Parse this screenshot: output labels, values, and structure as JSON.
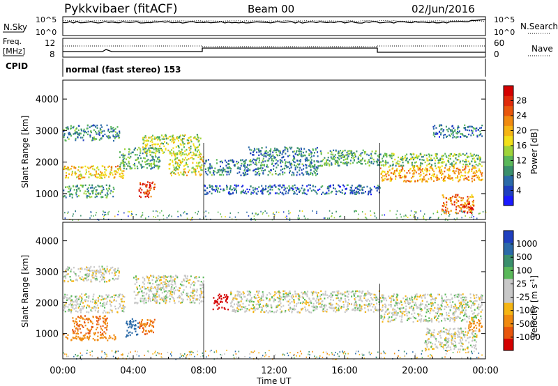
{
  "header": {
    "radar": "Pykkvibaer (fitACF)",
    "beam": "Beam 00",
    "date": "02/Jun/2016"
  },
  "nsky": {
    "label": "N.Sky",
    "right_label": "N.Search",
    "ticks_left": [
      "10^5",
      "10^0"
    ],
    "ticks_right": [
      "10^5",
      "10^0"
    ]
  },
  "freq": {
    "label_top": "Freq.",
    "label_bottom": "[MHz]",
    "right_label": "Nave",
    "ticks_left": [
      "12",
      "8"
    ],
    "ticks_right": [
      "60",
      "0"
    ]
  },
  "cpid": {
    "label": "CPID",
    "text": "normal (fast stereo) 153"
  },
  "x_axis": {
    "label": "Time UT",
    "ticks": [
      "00:00",
      "04:00",
      "08:00",
      "12:00",
      "16:00",
      "20:00",
      "00:00"
    ]
  },
  "power": {
    "title": "Power [dB]",
    "colorbar_labels": [
      "28",
      "24",
      "20",
      "16",
      "12",
      "8",
      "4"
    ],
    "colors": [
      "#1a1aff",
      "#1f3fbf",
      "#2b6aa8",
      "#3a8f6c",
      "#5ab85a",
      "#9fd43a",
      "#f2e01a",
      "#f5b514",
      "#f08a10",
      "#e8560d",
      "#e02a0a",
      "#d40000"
    ]
  },
  "velocity": {
    "title": "Velocity",
    "units": "[m s",
    "units_sup": "-1",
    "units_end": "]",
    "colorbar_labels": [
      "1000",
      "500",
      "100",
      "25",
      "-25",
      "-100",
      "-500",
      "-1000"
    ],
    "colors": [
      "#1f3fbf",
      "#2b6aa8",
      "#3a8f6c",
      "#5ab85a",
      "#c8c8c8",
      "#c8c8c8",
      "#f5b514",
      "#f08a10",
      "#e8560d",
      "#d40000"
    ]
  },
  "chart_data": [
    {
      "type": "heatmap",
      "title": "Power [dB]",
      "xlabel": "Time UT",
      "ylabel": "Slant Range [km]",
      "xlim": [
        0,
        24
      ],
      "ylim": [
        180,
        4600
      ],
      "x_ticks": [
        "00:00",
        "04:00",
        "08:00",
        "12:00",
        "16:00",
        "20:00",
        "00:00"
      ],
      "y_ticks": [
        1000,
        2000,
        3000,
        4000
      ],
      "colorbar_range": [
        0,
        30
      ],
      "regions": [
        {
          "t0": 0.0,
          "t1": 3.2,
          "r0": 2700,
          "r1": 3200,
          "level": 8
        },
        {
          "t0": 0.0,
          "t1": 3.5,
          "r0": 1500,
          "r1": 1900,
          "level": 18
        },
        {
          "t0": 0.0,
          "t1": 3.0,
          "r0": 900,
          "r1": 1300,
          "level": 10
        },
        {
          "t0": 3.2,
          "t1": 5.5,
          "r0": 1800,
          "r1": 2500,
          "level": 10
        },
        {
          "t0": 4.3,
          "t1": 5.2,
          "r0": 900,
          "r1": 1400,
          "level": 26
        },
        {
          "t0": 4.5,
          "t1": 7.8,
          "r0": 2300,
          "r1": 2900,
          "level": 14
        },
        {
          "t0": 6.0,
          "t1": 8.0,
          "r0": 1600,
          "r1": 2300,
          "level": 16
        },
        {
          "t0": 8.0,
          "t1": 14.5,
          "r0": 1600,
          "r1": 2100,
          "level": 8
        },
        {
          "t0": 10.5,
          "t1": 14.5,
          "r0": 2100,
          "r1": 2500,
          "level": 8
        },
        {
          "t0": 14.5,
          "t1": 18.0,
          "r0": 1900,
          "r1": 2400,
          "level": 10
        },
        {
          "t0": 8.0,
          "t1": 18.0,
          "r0": 1000,
          "r1": 1300,
          "level": 6
        },
        {
          "t0": 18.0,
          "t1": 23.8,
          "r0": 1400,
          "r1": 1900,
          "level": 20
        },
        {
          "t0": 18.0,
          "t1": 23.8,
          "r0": 1900,
          "r1": 2300,
          "level": 12
        },
        {
          "t0": 21.0,
          "t1": 23.8,
          "r0": 2800,
          "r1": 3200,
          "level": 7
        },
        {
          "t0": 21.5,
          "t1": 23.3,
          "r0": 400,
          "r1": 1000,
          "level": 22
        },
        {
          "t0": 22.7,
          "t1": 23.3,
          "r0": 400,
          "r1": 700,
          "level": 28
        }
      ]
    },
    {
      "type": "heatmap",
      "title": "Velocity [m s-1]",
      "xlabel": "Time UT",
      "ylabel": "Slant Range [km]",
      "xlim": [
        0,
        24
      ],
      "ylim": [
        180,
        4600
      ],
      "x_ticks": [
        "00:00",
        "04:00",
        "08:00",
        "12:00",
        "16:00",
        "20:00",
        "00:00"
      ],
      "y_ticks": [
        1000,
        2000,
        3000,
        4000
      ],
      "colorbar_range": [
        -1000,
        1000
      ],
      "regions": [
        {
          "t0": 0.0,
          "t1": 3.2,
          "r0": 2700,
          "r1": 3200,
          "velocity": 0
        },
        {
          "t0": 0.0,
          "t1": 3.5,
          "r0": 1700,
          "r1": 2300,
          "velocity": 0
        },
        {
          "t0": 0.5,
          "t1": 2.5,
          "r0": 1000,
          "r1": 1600,
          "velocity": -500
        },
        {
          "t0": 0.0,
          "t1": 3.0,
          "r0": 800,
          "r1": 1000,
          "velocity": -250
        },
        {
          "t0": 3.5,
          "t1": 4.3,
          "r0": 900,
          "r1": 1500,
          "velocity": 200
        },
        {
          "t0": 4.3,
          "t1": 5.2,
          "r0": 900,
          "r1": 1500,
          "velocity": -500
        },
        {
          "t0": 4.0,
          "t1": 8.0,
          "r0": 2000,
          "r1": 2900,
          "velocity": 0
        },
        {
          "t0": 8.5,
          "t1": 9.4,
          "r0": 1800,
          "r1": 2300,
          "velocity": -1000
        },
        {
          "t0": 9.5,
          "t1": 18.0,
          "r0": 1700,
          "r1": 2400,
          "velocity": 0
        },
        {
          "t0": 18.0,
          "t1": 23.8,
          "r0": 1400,
          "r1": 2300,
          "velocity": 0
        },
        {
          "t0": 20.5,
          "t1": 23.5,
          "r0": 500,
          "r1": 1200,
          "velocity": 0
        },
        {
          "t0": 23.0,
          "t1": 23.8,
          "r0": 1100,
          "r1": 1500,
          "velocity": -250
        }
      ]
    }
  ]
}
